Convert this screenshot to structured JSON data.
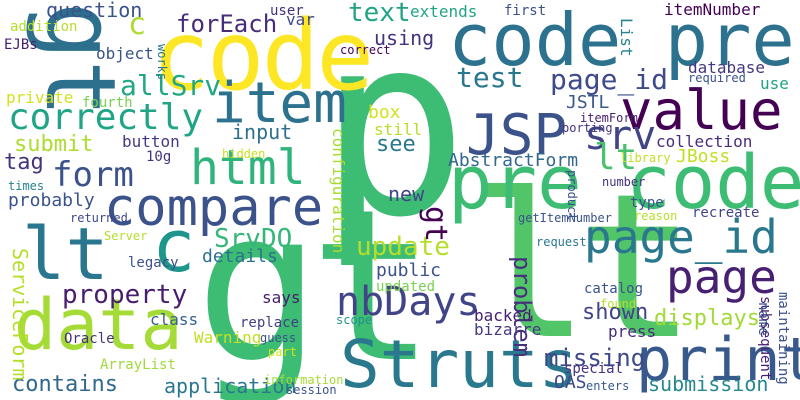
{
  "words": [
    {
      "text": "p",
      "color": "#3dbc74"
    },
    {
      "text": "gt",
      "color": "#3dbc74"
    },
    {
      "text": "lt",
      "color": "#52c569"
    },
    {
      "text": "code",
      "color": "#fde725"
    },
    {
      "text": "gt",
      "color": "#2d708e"
    },
    {
      "text": "code pre",
      "color": "#2c728e"
    },
    {
      "text": "pre code",
      "color": "#3dbc74"
    },
    {
      "text": "Struts",
      "color": "#2a788e"
    },
    {
      "text": "data",
      "color": "#a5db36"
    },
    {
      "text": "print",
      "color": "#38598c"
    },
    {
      "text": "value",
      "color": "#440154"
    },
    {
      "text": "item",
      "color": "#2c728e"
    },
    {
      "text": "JSP",
      "color": "#3b528b"
    },
    {
      "text": "lt",
      "color": "#2a768e"
    },
    {
      "text": "c",
      "color": "#1f968b"
    },
    {
      "text": "compare",
      "color": "#3b528b"
    },
    {
      "text": "html",
      "color": "#2fb47c"
    },
    {
      "text": "page_id",
      "color": "#2a788e"
    },
    {
      "text": "page",
      "color": "#482071"
    },
    {
      "text": "nbDays",
      "color": "#414487"
    },
    {
      "text": "correctly",
      "color": "#20a486"
    },
    {
      "text": "srv",
      "color": "#414487"
    },
    {
      "text": "form",
      "color": "#3b528b"
    },
    {
      "text": "allSrv",
      "color": "#22a785"
    },
    {
      "text": "c",
      "color": "#addc30"
    },
    {
      "text": "forEach",
      "color": "#472c7a"
    },
    {
      "text": "question",
      "color": "#3b528b"
    },
    {
      "text": "text",
      "color": "#20a386"
    },
    {
      "text": "using",
      "color": "#46337e"
    },
    {
      "text": "test",
      "color": "#2a788e"
    },
    {
      "text": "page_id",
      "color": "#3e4a89"
    },
    {
      "text": "lt",
      "color": "#4ac16d"
    },
    {
      "text": "update",
      "color": "#b5de2b"
    },
    {
      "text": "SrvDO",
      "color": "#35b779"
    },
    {
      "text": "property",
      "color": "#481d6f"
    },
    {
      "text": "contains",
      "color": "#31688e"
    },
    {
      "text": "application",
      "color": "#2a788e"
    },
    {
      "text": "missing",
      "color": "#3e4989"
    },
    {
      "text": "shown",
      "color": "#414487"
    },
    {
      "text": "displays",
      "color": "#a2da37"
    },
    {
      "text": "submission",
      "color": "#23898e"
    },
    {
      "text": "ServiceForm",
      "color": "#b5de2b"
    },
    {
      "text": "input",
      "color": "#2d708e"
    },
    {
      "text": "submit",
      "color": "#addc30"
    },
    {
      "text": "tag",
      "color": "#46337e"
    },
    {
      "text": "probably",
      "color": "#3b528b"
    },
    {
      "text": "private",
      "color": "#d2e21b"
    },
    {
      "text": "button",
      "color": "#443a83"
    },
    {
      "text": "see",
      "color": "#2a788e"
    },
    {
      "text": "box",
      "color": "#d2e21b"
    },
    {
      "text": "still",
      "color": "#b5de2b"
    },
    {
      "text": "new",
      "color": "#414487"
    },
    {
      "text": "gt",
      "color": "#440154"
    },
    {
      "text": "public",
      "color": "#3b528b"
    },
    {
      "text": "details",
      "color": "#2c728e"
    },
    {
      "text": "says",
      "color": "#481b6d"
    },
    {
      "text": "updated",
      "color": "#7ad151"
    },
    {
      "text": "problem",
      "color": "#46307e"
    },
    {
      "text": "configuration",
      "color": "#a8db34"
    },
    {
      "text": "AbstractForm",
      "color": "#31688e"
    },
    {
      "text": "JSTL",
      "color": "#38598c"
    },
    {
      "text": "JBoss",
      "color": "#c2df23"
    },
    {
      "text": "collection",
      "color": "#472c7a"
    },
    {
      "text": "database",
      "color": "#453781"
    },
    {
      "text": "use",
      "color": "#20a486"
    },
    {
      "text": "itemNumber",
      "color": "#440154"
    },
    {
      "text": "extends",
      "color": "#20a486"
    },
    {
      "text": "List",
      "color": "#26828e"
    },
    {
      "text": "first",
      "color": "#3b528b"
    },
    {
      "text": "user",
      "color": "#46307e"
    },
    {
      "text": "var",
      "color": "#3e4989"
    },
    {
      "text": "object",
      "color": "#3b528b"
    },
    {
      "text": "works",
      "color": "#2a788e"
    },
    {
      "text": "correct",
      "color": "#440154"
    },
    {
      "text": "EJBs",
      "color": "#482071"
    },
    {
      "text": "addition",
      "color": "#b5de2b"
    },
    {
      "text": "fourth",
      "color": "#7ad151"
    },
    {
      "text": "10g",
      "color": "#46337e"
    },
    {
      "text": "hidden",
      "color": "#c8e020"
    },
    {
      "text": "times",
      "color": "#26828e"
    },
    {
      "text": "returned",
      "color": "#3e4989"
    },
    {
      "text": "Server",
      "color": "#b5de2b"
    },
    {
      "text": "legacy",
      "color": "#3b528b"
    },
    {
      "text": "Oracle",
      "color": "#46337e"
    },
    {
      "text": "ArrayList",
      "color": "#a0da39"
    },
    {
      "text": "class",
      "color": "#34618d"
    },
    {
      "text": "replace",
      "color": "#424086"
    },
    {
      "text": "Warning",
      "color": "#c2df23"
    },
    {
      "text": "guess",
      "color": "#3b528b"
    },
    {
      "text": "part",
      "color": "#d2e21b"
    },
    {
      "text": "information",
      "color": "#a8db34"
    },
    {
      "text": "scope",
      "color": "#21918c"
    },
    {
      "text": "session",
      "color": "#3b528b"
    },
    {
      "text": "subsequent",
      "color": "#482071"
    },
    {
      "text": "backed",
      "color": "#482071"
    },
    {
      "text": "bizarre",
      "color": "#443a83"
    },
    {
      "text": "special",
      "color": "#46337e"
    },
    {
      "text": "enters",
      "color": "#38598c"
    },
    {
      "text": "OAS",
      "color": "#3e4989"
    },
    {
      "text": "press",
      "color": "#472c7a"
    },
    {
      "text": "name",
      "color": "#3b528b"
    },
    {
      "text": "maintaining",
      "color": "#3b528b"
    },
    {
      "text": "catalog",
      "color": "#3b528b"
    },
    {
      "text": "found",
      "color": "#b5de2b"
    },
    {
      "text": "request",
      "color": "#2a788e"
    },
    {
      "text": "getItemNumber",
      "color": "#3b528b"
    },
    {
      "text": "reason",
      "color": "#b5de2b"
    },
    {
      "text": "recreate",
      "color": "#414487"
    },
    {
      "text": "type",
      "color": "#3b528b"
    },
    {
      "text": "product",
      "color": "#3b528b"
    },
    {
      "text": "number",
      "color": "#46337e"
    },
    {
      "text": "library",
      "color": "#c2df23"
    },
    {
      "text": "itemForm",
      "color": "#482071"
    },
    {
      "text": "porting",
      "color": "#46337e"
    },
    {
      "text": "required",
      "color": "#3b528b"
    }
  ]
}
